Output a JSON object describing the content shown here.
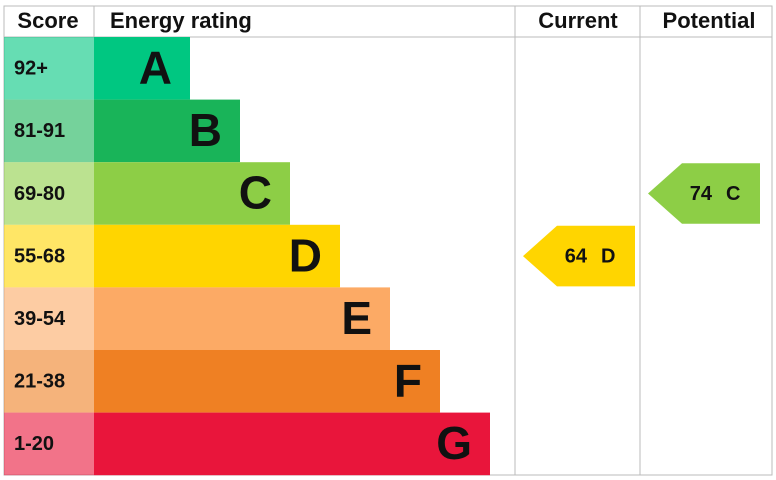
{
  "header": {
    "score": "Score",
    "rating": "Energy rating",
    "current": "Current",
    "potential": "Potential"
  },
  "bands": [
    {
      "score": "92+",
      "letter": "A",
      "color": "#00c781"
    },
    {
      "score": "81-91",
      "letter": "B",
      "color": "#19b459"
    },
    {
      "score": "69-80",
      "letter": "C",
      "color": "#8dce46"
    },
    {
      "score": "55-68",
      "letter": "D",
      "color": "#ffd500"
    },
    {
      "score": "39-54",
      "letter": "E",
      "color": "#fcaa65"
    },
    {
      "score": "21-38",
      "letter": "F",
      "color": "#ef8023"
    },
    {
      "score": "1-20",
      "letter": "G",
      "color": "#e9153b"
    }
  ],
  "current": {
    "value": 64,
    "letter": "D"
  },
  "potential": {
    "value": 74,
    "letter": "C"
  }
}
